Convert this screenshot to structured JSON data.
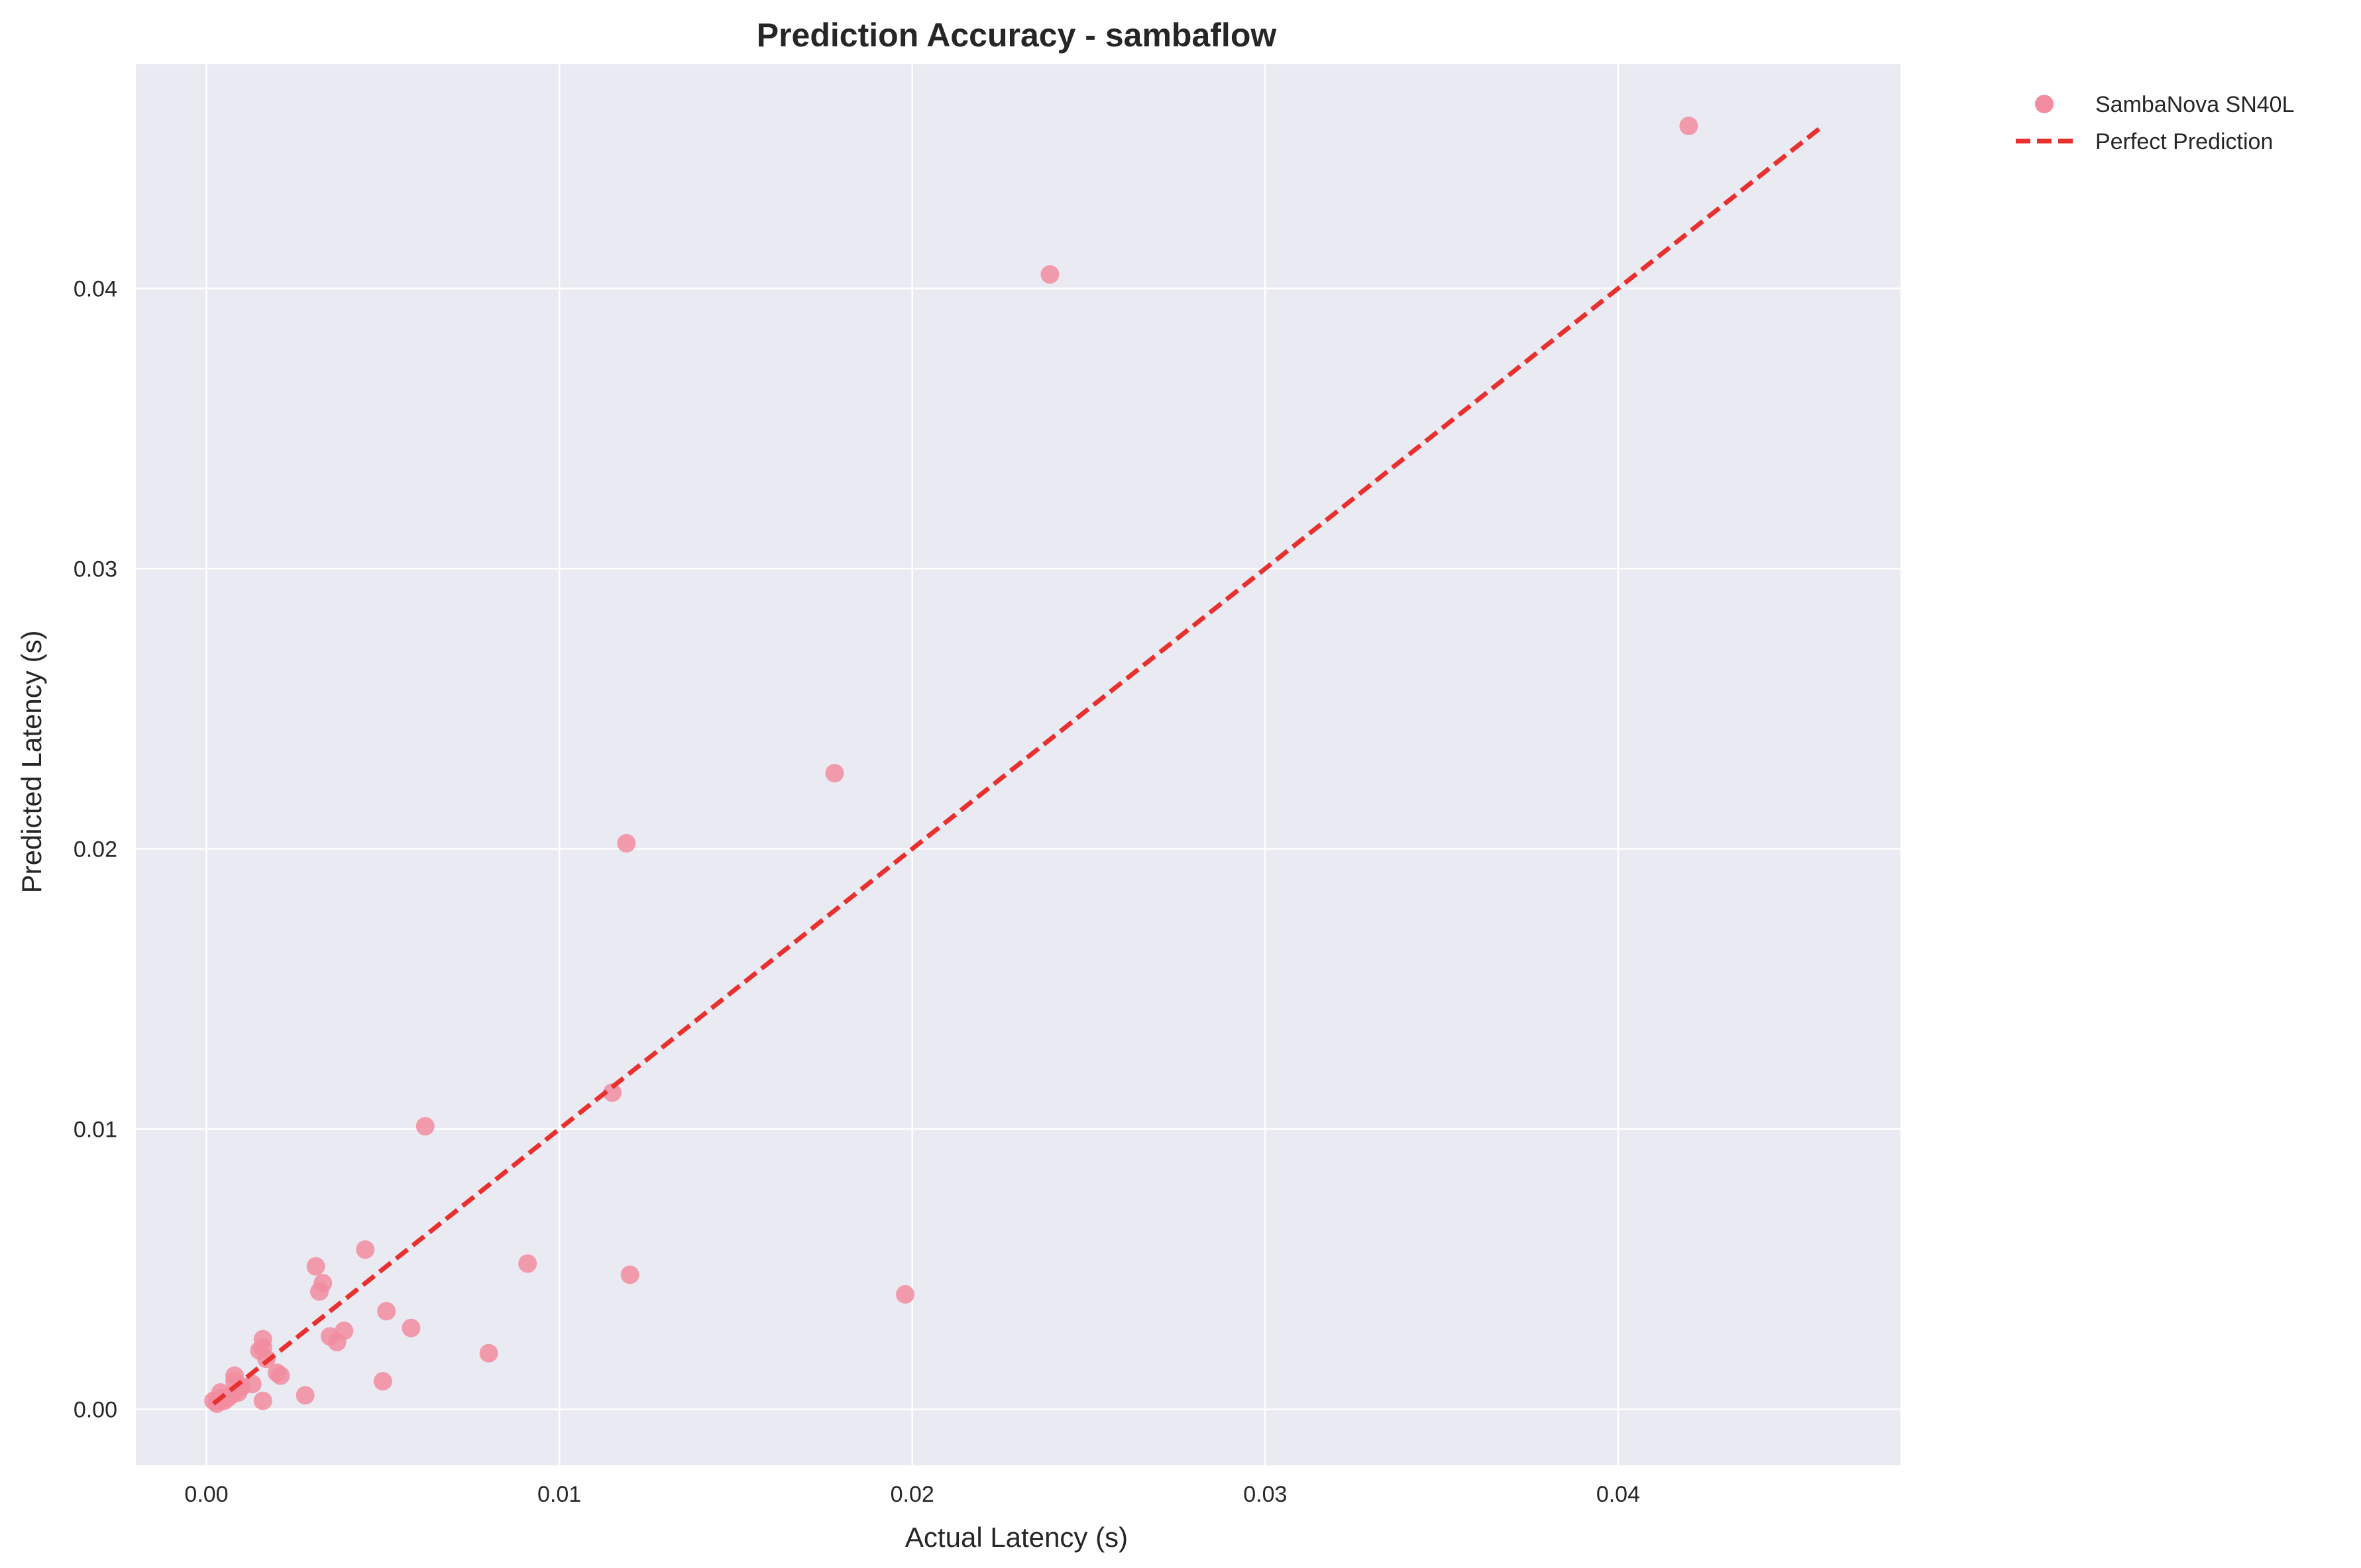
{
  "chart_data": {
    "type": "scatter",
    "title": "Prediction Accuracy - sambaflow",
    "xlabel": "Actual Latency (s)",
    "ylabel": "Predicted Latency (s)",
    "xlim": [
      -0.002,
      0.048
    ],
    "ylim": [
      -0.002,
      0.048
    ],
    "xticks": [
      0.0,
      0.01,
      0.02,
      0.03,
      0.04
    ],
    "xtick_labels": [
      "0.00",
      "0.01",
      "0.02",
      "0.03",
      "0.04"
    ],
    "yticks": [
      0.0,
      0.01,
      0.02,
      0.03,
      0.04
    ],
    "ytick_labels": [
      "0.00",
      "0.01",
      "0.02",
      "0.03",
      "0.04"
    ],
    "grid": true,
    "legend_position": "outside-top-right",
    "series": [
      {
        "name": "SambaNova SN40L",
        "kind": "scatter",
        "color": "#f28ca0",
        "points": [
          [
            0.042,
            0.0458
          ],
          [
            0.0239,
            0.0405
          ],
          [
            0.0178,
            0.0227
          ],
          [
            0.0119,
            0.0202
          ],
          [
            0.0115,
            0.0113
          ],
          [
            0.0062,
            0.0101
          ],
          [
            0.0198,
            0.0041
          ],
          [
            0.012,
            0.0048
          ],
          [
            0.0091,
            0.0052
          ],
          [
            0.0045,
            0.0057
          ],
          [
            0.0031,
            0.0051
          ],
          [
            0.0033,
            0.0045
          ],
          [
            0.0032,
            0.0042
          ],
          [
            0.0051,
            0.0035
          ],
          [
            0.0058,
            0.0029
          ],
          [
            0.0039,
            0.0028
          ],
          [
            0.0035,
            0.0026
          ],
          [
            0.0037,
            0.0024
          ],
          [
            0.008,
            0.002
          ],
          [
            0.0016,
            0.0025
          ],
          [
            0.0015,
            0.0021
          ],
          [
            0.0016,
            0.0022
          ],
          [
            0.0017,
            0.0018
          ],
          [
            0.002,
            0.0013
          ],
          [
            0.0021,
            0.0012
          ],
          [
            0.0013,
            0.0009
          ],
          [
            0.001,
            0.0008
          ],
          [
            0.0009,
            0.0006
          ],
          [
            0.0008,
            0.001
          ],
          [
            0.0008,
            0.0012
          ],
          [
            0.0007,
            0.0005
          ],
          [
            0.0006,
            0.0004
          ],
          [
            0.0005,
            0.0003
          ],
          [
            0.0004,
            0.0006
          ],
          [
            0.0004,
            0.0004
          ],
          [
            0.0003,
            0.0003
          ],
          [
            0.0003,
            0.0002
          ],
          [
            0.0002,
            0.0003
          ],
          [
            0.0016,
            0.0003
          ],
          [
            0.0028,
            0.0005
          ],
          [
            0.005,
            0.001
          ]
        ]
      },
      {
        "name": "Perfect Prediction",
        "kind": "line",
        "style": "dashed",
        "color": "#e8302f",
        "points": [
          [
            0.0002,
            0.0002
          ],
          [
            0.0458,
            0.0458
          ]
        ]
      }
    ]
  }
}
